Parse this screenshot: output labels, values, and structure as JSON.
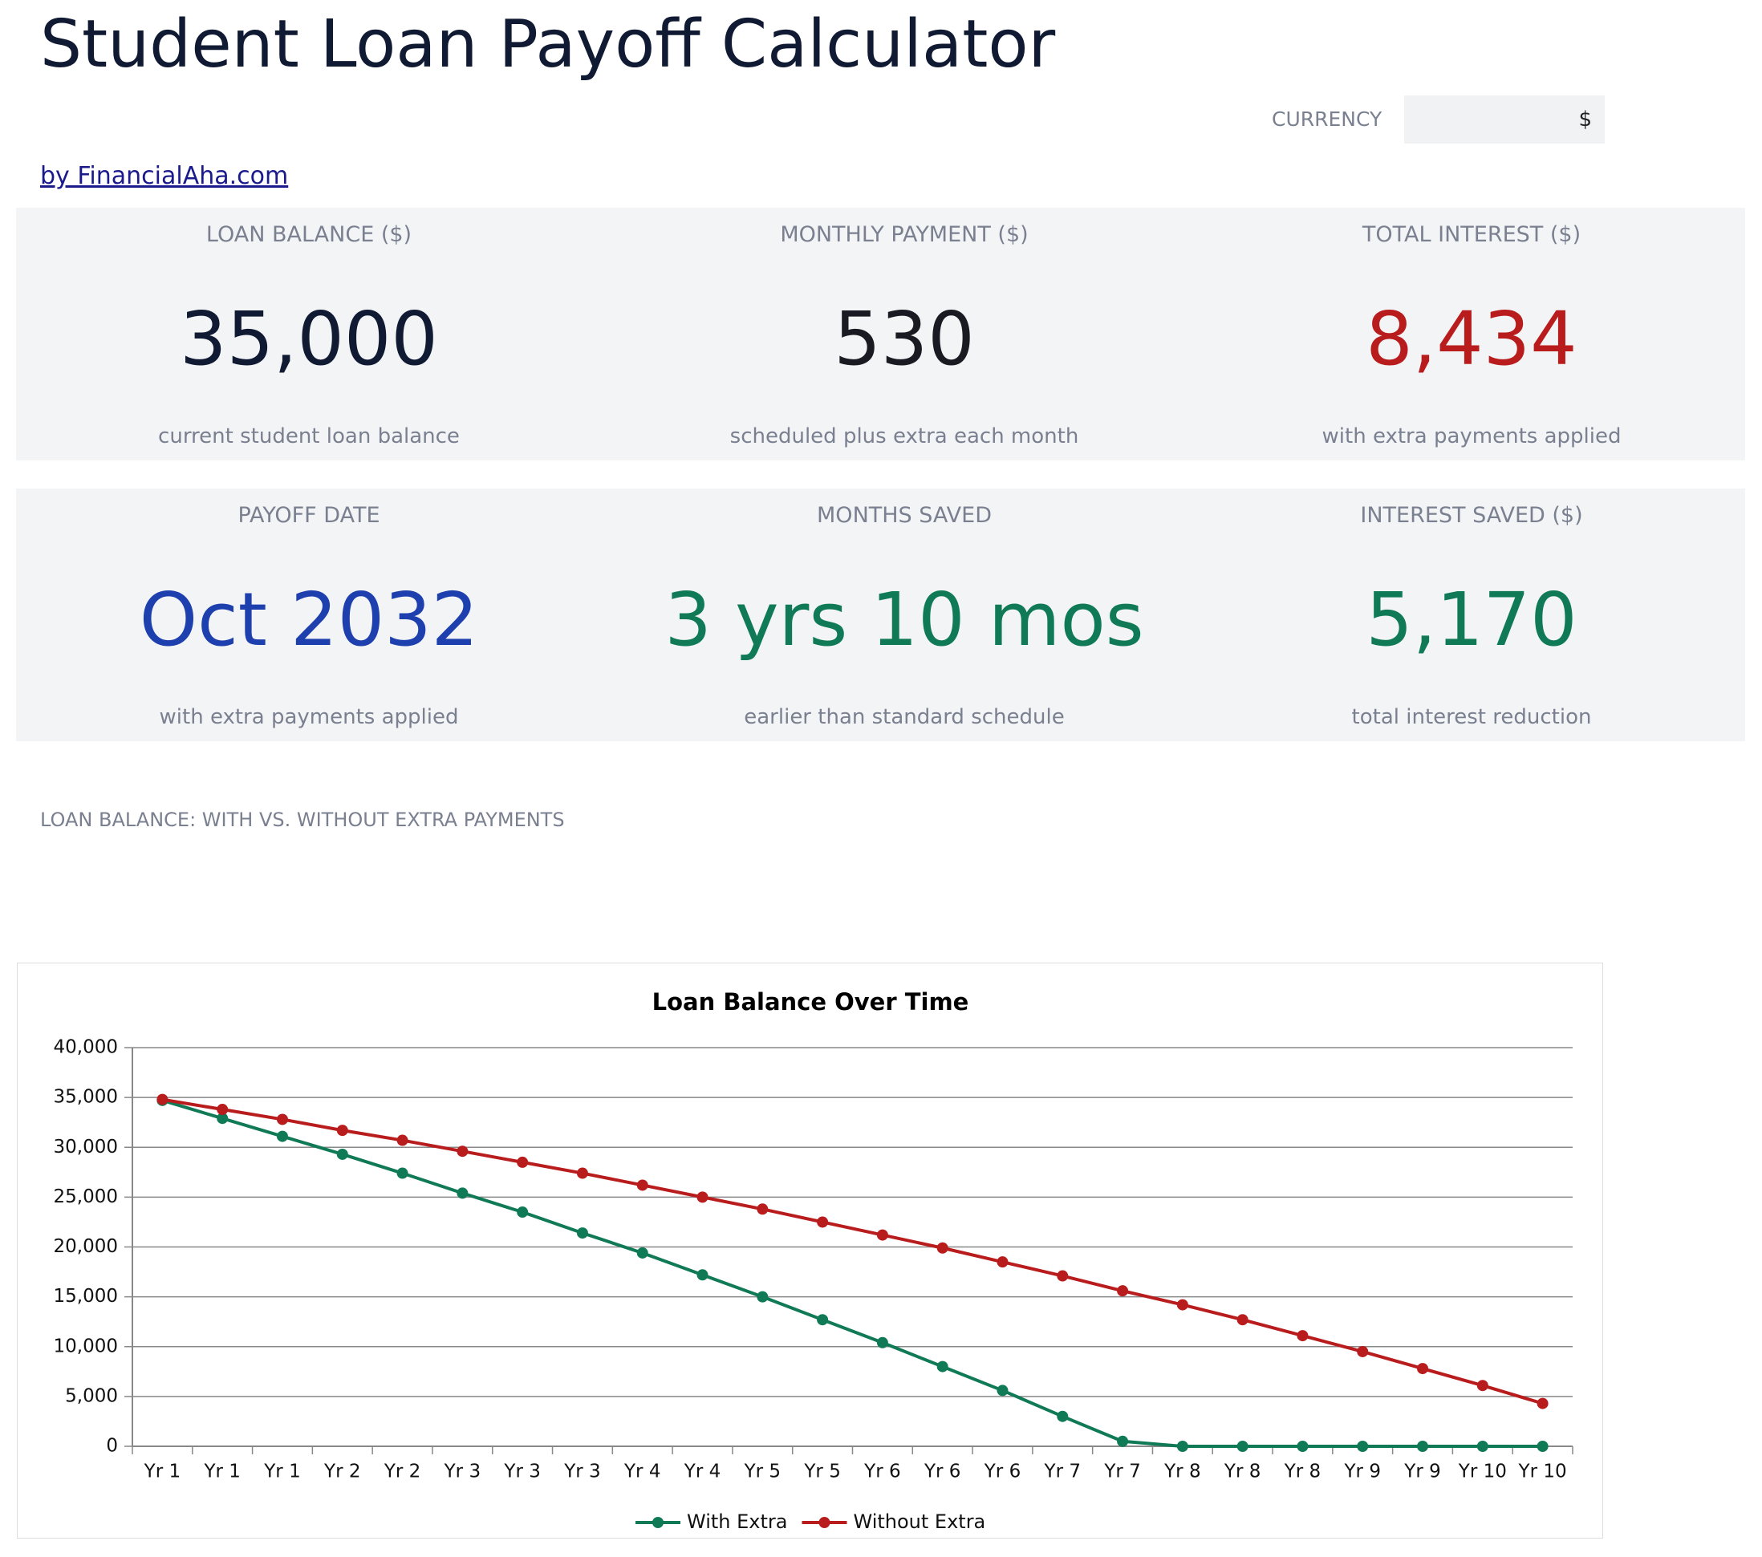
{
  "header": {
    "title": "Student Loan Payoff Calculator",
    "link": "by FinancialAha.com"
  },
  "currency": {
    "label": "CURRENCY",
    "value": "$"
  },
  "cards": [
    {
      "label": "LOAN BALANCE ($)",
      "value": "35,000",
      "note": "current student loan balance"
    },
    {
      "label": "MONTHLY PAYMENT ($)",
      "value": "530",
      "note": "scheduled plus extra each month"
    },
    {
      "label": "TOTAL INTEREST ($)",
      "value": "8,434",
      "note": "with extra payments applied"
    },
    {
      "label": "PAYOFF DATE",
      "value": "Oct 2032",
      "note": "with extra payments applied"
    },
    {
      "label": "MONTHS SAVED",
      "value": "3 yrs 10 mos",
      "note": "earlier than standard schedule"
    },
    {
      "label": "INTEREST SAVED ($)",
      "value": "5,170",
      "note": "total interest reduction"
    }
  ],
  "section_label": "LOAN BALANCE: WITH VS. WITHOUT EXTRA PAYMENTS",
  "chart_data": {
    "type": "line",
    "title": "Loan Balance Over Time",
    "categories": [
      "Yr 1",
      "Yr 1",
      "Yr 1",
      "Yr 2",
      "Yr 2",
      "Yr 3",
      "Yr 3",
      "Yr 3",
      "Yr 4",
      "Yr 4",
      "Yr 5",
      "Yr 5",
      "Yr 6",
      "Yr 6",
      "Yr 6",
      "Yr 7",
      "Yr 7",
      "Yr 8",
      "Yr 8",
      "Yr 8",
      "Yr 9",
      "Yr 9",
      "Yr 10",
      "Yr 10"
    ],
    "series": [
      {
        "name": "With Extra",
        "color": "#0f7a55",
        "values": [
          34700,
          32900,
          31100,
          29300,
          27400,
          25400,
          23500,
          21400,
          19400,
          17200,
          15000,
          12700,
          10400,
          8000,
          5600,
          3000,
          500,
          0,
          0,
          0,
          0,
          0,
          0,
          0
        ]
      },
      {
        "name": "Without Extra",
        "color": "#b91c1c",
        "values": [
          34800,
          33800,
          32800,
          31700,
          30700,
          29600,
          28500,
          27400,
          26200,
          25000,
          23800,
          22500,
          21200,
          19900,
          18500,
          17100,
          15600,
          14200,
          12700,
          11100,
          9500,
          7800,
          6100,
          4300
        ]
      }
    ],
    "ylim": [
      0,
      40000
    ],
    "yticks": [
      0,
      {
        "value": 5000,
        "label": "5,000"
      },
      {
        "value": 10000,
        "label": "10,000"
      },
      {
        "value": 15000,
        "label": "15,000"
      },
      {
        "value": 20000,
        "label": "20,000"
      },
      {
        "value": 25000,
        "label": "25,000"
      },
      {
        "value": 30000,
        "label": "30,000"
      },
      {
        "value": 35000,
        "label": "35,000"
      },
      {
        "value": 40000,
        "label": "40,000"
      }
    ],
    "grid": true,
    "legend": "bottom"
  }
}
